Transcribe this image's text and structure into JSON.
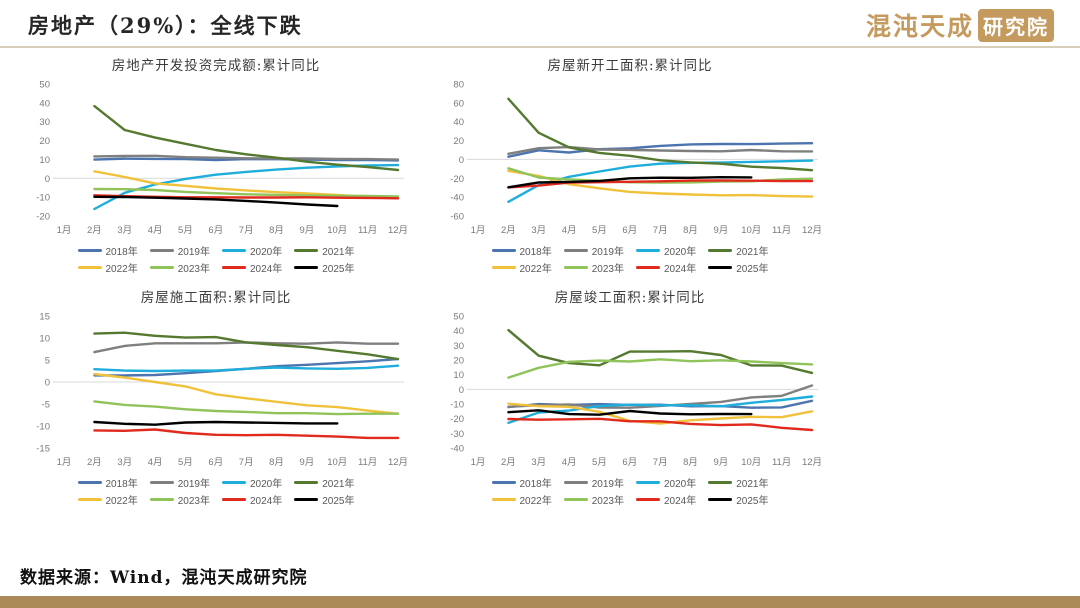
{
  "header": {
    "title": "房地产（29%）：全线下跌",
    "logo_text": "混沌天成",
    "logo_badge": "研究院"
  },
  "footer": {
    "source": "数据来源：Wind，混沌天成研究院"
  },
  "legend": [
    {
      "label": "2018年",
      "color": "#4C74AE"
    },
    {
      "label": "2019年",
      "color": "#7F7F7F"
    },
    {
      "label": "2020年",
      "color": "#1FAEDB"
    },
    {
      "label": "2021年",
      "color": "#54792F"
    },
    {
      "label": "2022年",
      "color": "#F0C23C"
    },
    {
      "label": "2023年",
      "color": "#90C35A"
    },
    {
      "label": "2024年",
      "color": "#E02A1E"
    },
    {
      "label": "2025年",
      "color": "#000000"
    }
  ],
  "chart_data": [
    {
      "type": "line",
      "title": "房地产开发投资完成额:累计同比",
      "ylim": [
        -20,
        50
      ],
      "yticks": [
        50,
        40,
        30,
        20,
        10,
        0,
        -10,
        -20
      ],
      "legend_position": "bottom",
      "grid": false,
      "categories": [
        "1月",
        "2月",
        "3月",
        "4月",
        "5月",
        "6月",
        "7月",
        "8月",
        "9月",
        "10月",
        "11月",
        "12月"
      ],
      "series": [
        {
          "name": "2018年",
          "values": [
            null,
            9.9,
            10.4,
            10.3,
            10.2,
            9.7,
            10.2,
            10.1,
            9.9,
            9.7,
            9.7,
            9.5
          ]
        },
        {
          "name": "2019年",
          "values": [
            null,
            11.6,
            11.8,
            11.9,
            11.2,
            10.9,
            10.6,
            10.5,
            10.5,
            10.3,
            10.2,
            9.9
          ]
        },
        {
          "name": "2020年",
          "values": [
            null,
            -16.3,
            -7.7,
            -3.3,
            -0.3,
            1.9,
            3.4,
            4.6,
            5.6,
            6.3,
            6.8,
            7.0
          ]
        },
        {
          "name": "2021年",
          "values": [
            null,
            38.3,
            25.6,
            21.6,
            18.3,
            15.0,
            12.7,
            10.9,
            8.8,
            7.2,
            6.0,
            4.4
          ]
        },
        {
          "name": "2022年",
          "values": [
            null,
            3.7,
            0.7,
            -2.7,
            -4.0,
            -5.4,
            -6.4,
            -7.4,
            -8.0,
            -8.8,
            -9.8,
            -10.0
          ]
        },
        {
          "name": "2023年",
          "values": [
            null,
            -5.7,
            -5.8,
            -6.2,
            -7.2,
            -7.9,
            -8.5,
            -8.8,
            -9.1,
            -9.3,
            -9.4,
            -9.6
          ]
        },
        {
          "name": "2024年",
          "values": [
            null,
            -9.0,
            -9.5,
            -9.8,
            -10.1,
            -10.1,
            -10.2,
            -10.2,
            -10.1,
            -10.3,
            -10.4,
            -10.6
          ]
        },
        {
          "name": "2025年",
          "values": [
            null,
            -9.8,
            -9.9,
            -10.3,
            -10.7,
            -11.2,
            -12.0,
            -12.9,
            -13.9,
            -14.7,
            null,
            null
          ]
        }
      ]
    },
    {
      "type": "line",
      "title": "房屋新开工面积:累计同比",
      "ylim": [
        -60,
        80
      ],
      "yticks": [
        80,
        60,
        40,
        20,
        0,
        -20,
        -40,
        -60
      ],
      "legend_position": "bottom",
      "grid": false,
      "categories": [
        "1月",
        "2月",
        "3月",
        "4月",
        "5月",
        "6月",
        "7月",
        "8月",
        "9月",
        "10月",
        "11月",
        "12月"
      ],
      "series": [
        {
          "name": "2018年",
          "values": [
            null,
            2.9,
            9.7,
            7.3,
            10.8,
            11.8,
            14.4,
            15.9,
            16.4,
            16.3,
            16.8,
            17.2
          ]
        },
        {
          "name": "2019年",
          "values": [
            null,
            6.0,
            11.9,
            13.1,
            10.5,
            10.1,
            9.5,
            8.9,
            8.6,
            10.0,
            8.6,
            8.5
          ]
        },
        {
          "name": "2020年",
          "values": [
            null,
            -44.9,
            -27.2,
            -18.4,
            -12.8,
            -7.6,
            -4.5,
            -3.6,
            -3.4,
            -2.6,
            -2.0,
            -1.2
          ]
        },
        {
          "name": "2021年",
          "values": [
            null,
            64.3,
            28.2,
            12.8,
            6.9,
            3.8,
            -0.9,
            -3.2,
            -4.5,
            -7.7,
            -9.1,
            -11.4
          ]
        },
        {
          "name": "2022年",
          "values": [
            null,
            -12.2,
            -17.5,
            -26.3,
            -30.6,
            -34.4,
            -36.1,
            -37.2,
            -38.0,
            -37.8,
            -38.9,
            -39.4
          ]
        },
        {
          "name": "2023年",
          "values": [
            null,
            -9.4,
            -19.2,
            -21.2,
            -22.6,
            -24.3,
            -24.5,
            -24.4,
            -23.4,
            -23.2,
            -21.2,
            -20.4
          ]
        },
        {
          "name": "2024年",
          "values": [
            null,
            -29.7,
            -27.8,
            -24.6,
            -24.2,
            -23.7,
            -23.2,
            -22.5,
            -22.2,
            -22.6,
            -23.0,
            -23.0
          ]
        },
        {
          "name": "2025年",
          "values": [
            null,
            -29.6,
            -24.4,
            -23.8,
            -22.8,
            -20.0,
            -19.4,
            -19.5,
            -18.9,
            -19.1,
            null,
            null
          ]
        }
      ]
    },
    {
      "type": "line",
      "title": "房屋施工面积:累计同比",
      "ylim": [
        -15,
        15
      ],
      "yticks": [
        15,
        10,
        5,
        0,
        -5,
        -10,
        -15
      ],
      "legend_position": "bottom",
      "grid": false,
      "categories": [
        "1月",
        "2月",
        "3月",
        "4月",
        "5月",
        "6月",
        "7月",
        "8月",
        "9月",
        "10月",
        "11月",
        "12月"
      ],
      "series": [
        {
          "name": "2018年",
          "values": [
            null,
            1.5,
            1.5,
            1.6,
            2.0,
            2.5,
            3.0,
            3.6,
            3.9,
            4.3,
            4.7,
            5.2
          ]
        },
        {
          "name": "2019年",
          "values": [
            null,
            6.8,
            8.2,
            8.8,
            8.8,
            8.8,
            9.0,
            8.8,
            8.7,
            9.0,
            8.7,
            8.7
          ]
        },
        {
          "name": "2020年",
          "values": [
            null,
            2.9,
            2.6,
            2.5,
            2.6,
            2.6,
            3.0,
            3.3,
            3.1,
            3.0,
            3.2,
            3.7
          ]
        },
        {
          "name": "2021年",
          "values": [
            null,
            11.0,
            11.2,
            10.5,
            10.1,
            10.2,
            9.0,
            8.4,
            7.9,
            7.1,
            6.3,
            5.2
          ]
        },
        {
          "name": "2022年",
          "values": [
            null,
            1.8,
            1.0,
            0.0,
            -1.0,
            -2.8,
            -3.7,
            -4.5,
            -5.3,
            -5.7,
            -6.5,
            -7.2
          ]
        },
        {
          "name": "2023年",
          "values": [
            null,
            -4.4,
            -5.2,
            -5.6,
            -6.2,
            -6.6,
            -6.8,
            -7.1,
            -7.1,
            -7.3,
            -7.2,
            -7.2
          ]
        },
        {
          "name": "2024年",
          "values": [
            null,
            -11.0,
            -11.1,
            -10.8,
            -11.6,
            -12.0,
            -12.1,
            -12.0,
            -12.2,
            -12.4,
            -12.7,
            -12.7
          ]
        },
        {
          "name": "2025年",
          "values": [
            null,
            -9.1,
            -9.5,
            -9.7,
            -9.2,
            -9.1,
            -9.2,
            -9.3,
            -9.4,
            -9.4,
            null,
            null
          ]
        }
      ]
    },
    {
      "type": "line",
      "title": "房屋竣工面积:累计同比",
      "ylim": [
        -40,
        50
      ],
      "yticks": [
        50,
        40,
        30,
        20,
        10,
        0,
        -10,
        -20,
        -30,
        -40
      ],
      "legend_position": "bottom",
      "grid": false,
      "categories": [
        "1月",
        "2月",
        "3月",
        "4月",
        "5月",
        "6月",
        "7月",
        "8月",
        "9月",
        "10月",
        "11月",
        "12月"
      ],
      "series": [
        {
          "name": "2018年",
          "values": [
            null,
            -12.1,
            -10.1,
            -10.7,
            -10.1,
            -10.6,
            -10.5,
            -11.6,
            -11.4,
            -12.5,
            -12.3,
            -7.8
          ]
        },
        {
          "name": "2019年",
          "values": [
            null,
            -11.9,
            -10.8,
            -10.3,
            -12.4,
            -12.5,
            -11.3,
            -10.0,
            -8.6,
            -5.5,
            -4.5,
            2.6
          ]
        },
        {
          "name": "2020年",
          "values": [
            null,
            -22.9,
            -15.8,
            -14.5,
            -11.3,
            -10.5,
            -10.9,
            -10.8,
            -11.6,
            -9.2,
            -7.3,
            -4.9
          ]
        },
        {
          "name": "2021年",
          "values": [
            null,
            40.4,
            22.9,
            17.9,
            16.4,
            25.7,
            25.7,
            26.0,
            23.4,
            16.3,
            16.2,
            11.2
          ]
        },
        {
          "name": "2022年",
          "values": [
            null,
            -9.8,
            -11.5,
            -11.9,
            -15.3,
            -21.5,
            -23.3,
            -21.1,
            -19.9,
            -18.7,
            -19.0,
            -15.0
          ]
        },
        {
          "name": "2023年",
          "values": [
            null,
            8.0,
            14.7,
            18.8,
            19.6,
            19.0,
            20.5,
            19.2,
            19.8,
            19.0,
            17.9,
            17.0
          ]
        },
        {
          "name": "2024年",
          "values": [
            null,
            -20.2,
            -20.7,
            -20.4,
            -20.1,
            -21.8,
            -21.8,
            -23.6,
            -24.4,
            -23.9,
            -26.2,
            -27.7
          ]
        },
        {
          "name": "2025年",
          "values": [
            null,
            -15.6,
            -14.3,
            -16.9,
            -17.3,
            -14.8,
            -16.5,
            -17.0,
            -16.8,
            -16.9,
            null,
            null
          ]
        }
      ]
    }
  ]
}
